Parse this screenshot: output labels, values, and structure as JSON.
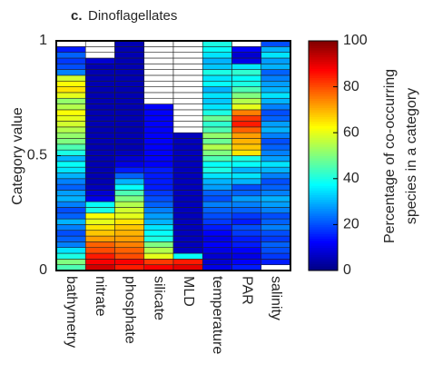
{
  "chart_data": {
    "type": "heatmap",
    "panel_label": "c.",
    "title": "Dinoflagellates",
    "ylabel": "Category value",
    "ylim": [
      0,
      1
    ],
    "yticks": [
      0,
      0.5,
      1
    ],
    "colormap": "jet",
    "series": [
      {
        "name": "bathymetry",
        "values": [
          45,
          50,
          40,
          35,
          25,
          22,
          20,
          25,
          30,
          22,
          20,
          25,
          30,
          28,
          22,
          25,
          30,
          35,
          38,
          30,
          40,
          45,
          50,
          52,
          55,
          58,
          60,
          62,
          55,
          52,
          60,
          65,
          62,
          58,
          25,
          20,
          18,
          22,
          15,
          null
        ]
      },
      {
        "name": "nitrate",
        "values": [
          92,
          88,
          85,
          80,
          78,
          72,
          68,
          65,
          60,
          62,
          40,
          38,
          10,
          8,
          6,
          5,
          5,
          5,
          5,
          5,
          5,
          5,
          5,
          5,
          5,
          5,
          5,
          5,
          5,
          5,
          5,
          5,
          5,
          5,
          5,
          5,
          8,
          null,
          null,
          null
        ]
      },
      {
        "name": "phosphate",
        "values": [
          85,
          88,
          80,
          78,
          75,
          72,
          70,
          68,
          65,
          60,
          58,
          55,
          50,
          45,
          38,
          30,
          22,
          15,
          10,
          8,
          6,
          5,
          5,
          5,
          5,
          5,
          5,
          5,
          5,
          5,
          5,
          5,
          5,
          5,
          5,
          5,
          5,
          5,
          5,
          5
        ]
      },
      {
        "name": "silicate",
        "values": [
          88,
          82,
          60,
          55,
          50,
          40,
          38,
          35,
          30,
          28,
          25,
          22,
          20,
          18,
          15,
          15,
          15,
          15,
          12,
          12,
          12,
          12,
          12,
          12,
          12,
          12,
          12,
          12,
          12,
          null,
          null,
          null,
          null,
          null,
          null,
          null,
          null,
          null,
          null,
          null
        ]
      },
      {
        "name": "MLD",
        "values": [
          90,
          85,
          38,
          6,
          6,
          6,
          6,
          6,
          6,
          6,
          6,
          6,
          6,
          6,
          6,
          6,
          6,
          6,
          6,
          6,
          6,
          6,
          6,
          6,
          null,
          null,
          null,
          null,
          null,
          null,
          null,
          null,
          null,
          null,
          null,
          null,
          null,
          null,
          null,
          null
        ]
      },
      {
        "name": "temperature",
        "values": [
          10,
          8,
          8,
          10,
          12,
          10,
          12,
          15,
          18,
          20,
          22,
          25,
          20,
          22,
          28,
          30,
          35,
          40,
          38,
          45,
          50,
          55,
          48,
          52,
          45,
          42,
          48,
          40,
          35,
          32,
          35,
          30,
          38,
          35,
          40,
          32,
          30,
          35,
          38,
          40
        ]
      },
      {
        "name": "PAR",
        "values": [
          15,
          12,
          10,
          12,
          15,
          15,
          18,
          20,
          15,
          18,
          22,
          25,
          28,
          22,
          20,
          30,
          35,
          30,
          38,
          40,
          65,
          68,
          70,
          72,
          78,
          85,
          82,
          75,
          60,
          55,
          50,
          45,
          40,
          38,
          42,
          35,
          10,
          8,
          12,
          null
        ]
      },
      {
        "name": "salinity",
        "values": [
          null,
          15,
          18,
          20,
          22,
          18,
          20,
          25,
          22,
          20,
          25,
          28,
          30,
          25,
          22,
          20,
          25,
          30,
          35,
          28,
          25,
          22,
          20,
          25,
          30,
          28,
          22,
          20,
          25,
          30,
          35,
          30,
          28,
          25,
          22,
          30,
          28,
          35,
          30,
          20
        ]
      }
    ],
    "colorbar": {
      "label": [
        "Percentage of co-occurring",
        "species in a category"
      ],
      "lim": [
        0,
        100
      ],
      "ticks": [
        0,
        20,
        40,
        60,
        80,
        100
      ]
    }
  }
}
